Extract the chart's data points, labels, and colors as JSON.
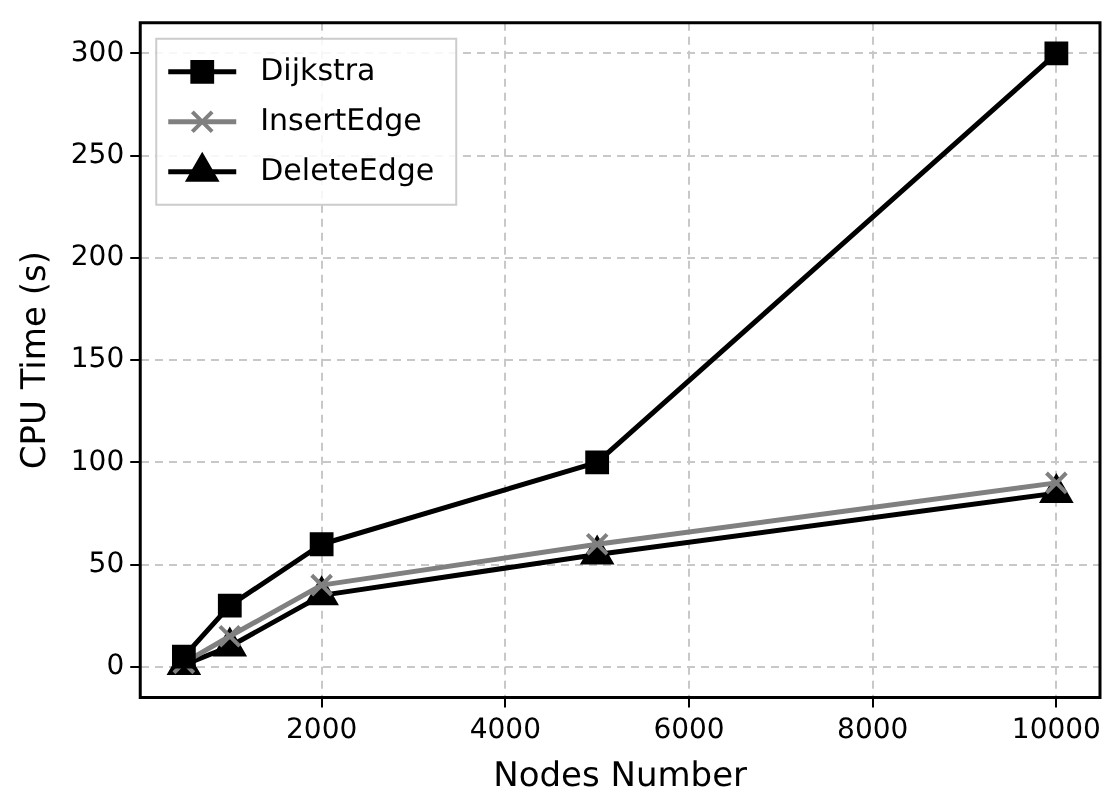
{
  "chart_data": {
    "type": "line",
    "xlabel": "Nodes Number",
    "ylabel": "CPU Time (s)",
    "x": [
      500,
      1000,
      2000,
      5000,
      10000
    ],
    "series": [
      {
        "name": "Dijkstra",
        "color": "#000000",
        "marker": "square",
        "values": [
          5,
          30,
          60,
          100,
          300
        ]
      },
      {
        "name": "InsertEdge",
        "color": "#808080",
        "marker": "cross",
        "values": [
          2,
          15,
          40,
          60,
          90
        ]
      },
      {
        "name": "DeleteEdge",
        "color": "#000000",
        "marker": "triangle",
        "values": [
          1,
          10,
          35,
          55,
          85
        ]
      }
    ],
    "xlim": [
      25,
      10475
    ],
    "xticks": [
      2000,
      4000,
      6000,
      8000,
      10000
    ],
    "ylim": [
      -15,
      315
    ],
    "yticks": [
      0,
      50,
      100,
      150,
      200,
      250,
      300
    ],
    "grid": true,
    "legend": "top left"
  }
}
